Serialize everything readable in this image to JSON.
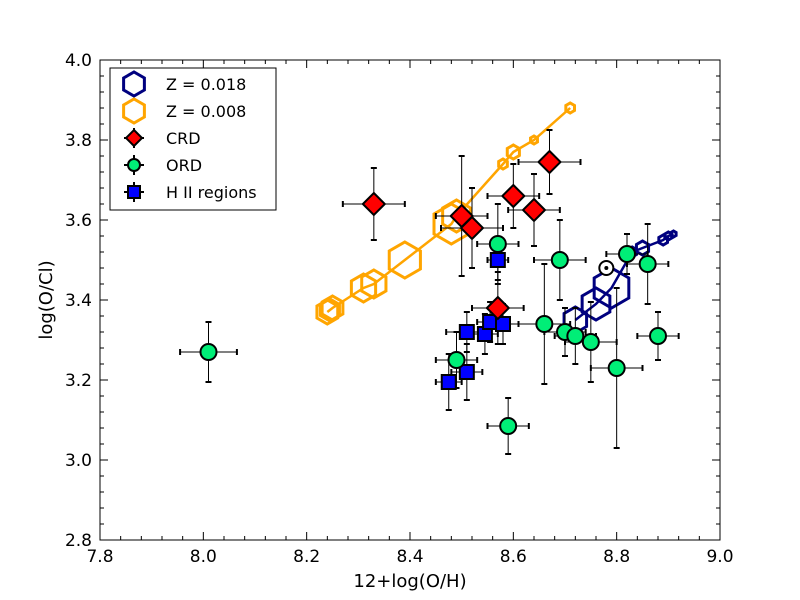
{
  "chart_data": {
    "type": "scatter",
    "title": "",
    "xlabel": "12+log(O/H)",
    "ylabel": "log(O/Cl)",
    "xlim": [
      7.8,
      9.0
    ],
    "ylim": [
      2.8,
      4.0
    ],
    "xticks": [
      7.8,
      8.0,
      8.2,
      8.4,
      8.6,
      8.8,
      9.0
    ],
    "xtick_labels": [
      "7.8",
      "8.0",
      "8.2",
      "8.4",
      "8.6",
      "8.8",
      "9.0"
    ],
    "yticks": [
      2.8,
      3.0,
      3.2,
      3.4,
      3.6,
      3.8,
      4.0
    ],
    "ytick_labels": [
      "2.8",
      "3.0",
      "3.2",
      "3.4",
      "3.6",
      "3.8",
      "4.0"
    ],
    "legend_position": "top-left",
    "colors": {
      "z018": "#00007f",
      "z008": "#ffa500",
      "crd": "#ff0000",
      "ord": "#00ee77",
      "hii": "#0000ff"
    },
    "legend": [
      {
        "label": "Z = 0.018",
        "marker": "hexagon-open",
        "color": "#00007f"
      },
      {
        "label": "Z = 0.008",
        "marker": "hexagon-open",
        "color": "#ffa500"
      },
      {
        "label": "CRD",
        "marker": "diamond",
        "color": "#ff0000"
      },
      {
        "label": "ORD",
        "marker": "circle",
        "color": "#00ee77"
      },
      {
        "label": "H II regions",
        "marker": "square",
        "color": "#0000ff"
      }
    ],
    "models": [
      {
        "name": "Z = 0.008",
        "color": "#ffa500",
        "points": [
          {
            "x": 8.24,
            "y": 3.37,
            "s": 12
          },
          {
            "x": 8.245,
            "y": 3.375,
            "s": 11
          },
          {
            "x": 8.25,
            "y": 3.38,
            "s": 12
          },
          {
            "x": 8.31,
            "y": 3.43,
            "s": 14
          },
          {
            "x": 8.33,
            "y": 3.44,
            "s": 14
          },
          {
            "x": 8.39,
            "y": 3.5,
            "s": 18
          },
          {
            "x": 8.48,
            "y": 3.59,
            "s": 20
          },
          {
            "x": 8.49,
            "y": 3.61,
            "s": 16
          },
          {
            "x": 8.58,
            "y": 3.74,
            "s": 5
          },
          {
            "x": 8.6,
            "y": 3.77,
            "s": 7
          },
          {
            "x": 8.64,
            "y": 3.8,
            "s": 4
          },
          {
            "x": 8.71,
            "y": 3.88,
            "s": 5
          }
        ]
      },
      {
        "name": "Z = 0.018",
        "color": "#00007f",
        "points": [
          {
            "x": 8.72,
            "y": 3.35,
            "s": 13
          },
          {
            "x": 8.76,
            "y": 3.39,
            "s": 16
          },
          {
            "x": 8.79,
            "y": 3.43,
            "s": 20
          },
          {
            "x": 8.83,
            "y": 3.52,
            "s": 5
          },
          {
            "x": 8.85,
            "y": 3.53,
            "s": 7
          },
          {
            "x": 8.89,
            "y": 3.55,
            "s": 5
          },
          {
            "x": 8.9,
            "y": 3.56,
            "s": 4
          },
          {
            "x": 8.91,
            "y": 3.565,
            "s": 3
          }
        ]
      }
    ],
    "series": [
      {
        "name": "CRD",
        "marker": "diamond",
        "color": "#ff0000",
        "points": [
          {
            "x": 8.33,
            "y": 3.64,
            "xerr": 0.06,
            "yerr": 0.09
          },
          {
            "x": 8.5,
            "y": 3.61,
            "xerr": 0.05,
            "yerr": 0.15
          },
          {
            "x": 8.52,
            "y": 3.58,
            "xerr": 0.06,
            "yerr": 0.1
          },
          {
            "x": 8.6,
            "y": 3.66,
            "xerr": 0.05,
            "yerr": 0.08
          },
          {
            "x": 8.67,
            "y": 3.745,
            "xerr": 0.06,
            "yerr": 0.08
          },
          {
            "x": 8.64,
            "y": 3.625,
            "xerr": 0.05,
            "yerr": 0.09
          },
          {
            "x": 8.57,
            "y": 3.38,
            "xerr": 0.05,
            "yerr": 0.09
          }
        ]
      },
      {
        "name": "ORD",
        "marker": "circle",
        "color": "#00ee77",
        "points": [
          {
            "x": 8.01,
            "y": 3.27,
            "xerr": 0.055,
            "yerr": 0.075
          },
          {
            "x": 8.57,
            "y": 3.54,
            "xerr": 0.04,
            "yerr": 0.1
          },
          {
            "x": 8.59,
            "y": 3.085,
            "xerr": 0.04,
            "yerr": 0.07
          },
          {
            "x": 8.49,
            "y": 3.25,
            "xerr": 0.04,
            "yerr": 0.07
          },
          {
            "x": 8.66,
            "y": 3.34,
            "xerr": 0.05,
            "yerr": 0.15
          },
          {
            "x": 8.69,
            "y": 3.5,
            "xerr": 0.05,
            "yerr": 0.1
          },
          {
            "x": 8.7,
            "y": 3.32,
            "xerr": 0.04,
            "yerr": 0.06
          },
          {
            "x": 8.72,
            "y": 3.31,
            "xerr": 0.04,
            "yerr": 0.07
          },
          {
            "x": 8.75,
            "y": 3.295,
            "xerr": 0.05,
            "yerr": 0.1
          },
          {
            "x": 8.8,
            "y": 3.23,
            "xerr": 0.05,
            "yerr": 0.2
          },
          {
            "x": 8.82,
            "y": 3.515,
            "xerr": 0.04,
            "yerr": 0.05
          },
          {
            "x": 8.86,
            "y": 3.49,
            "xerr": 0.04,
            "yerr": 0.1
          },
          {
            "x": 8.88,
            "y": 3.31,
            "xerr": 0.04,
            "yerr": 0.06
          }
        ]
      },
      {
        "name": "H II regions",
        "marker": "square",
        "color": "#0000ff",
        "points": [
          {
            "x": 8.475,
            "y": 3.195,
            "xerr": 0.025,
            "yerr": 0.07
          },
          {
            "x": 8.51,
            "y": 3.22,
            "xerr": 0.03,
            "yerr": 0.07
          },
          {
            "x": 8.51,
            "y": 3.32,
            "xerr": 0.04,
            "yerr": 0.05
          },
          {
            "x": 8.545,
            "y": 3.315,
            "xerr": 0.025,
            "yerr": 0.05
          },
          {
            "x": 8.555,
            "y": 3.345,
            "xerr": 0.025,
            "yerr": 0.05
          },
          {
            "x": 8.58,
            "y": 3.34,
            "xerr": 0.03,
            "yerr": 0.05
          },
          {
            "x": 8.57,
            "y": 3.5,
            "xerr": 0.02,
            "yerr": 0.05
          }
        ]
      }
    ],
    "solar": {
      "x": 8.78,
      "y": 3.48
    }
  }
}
